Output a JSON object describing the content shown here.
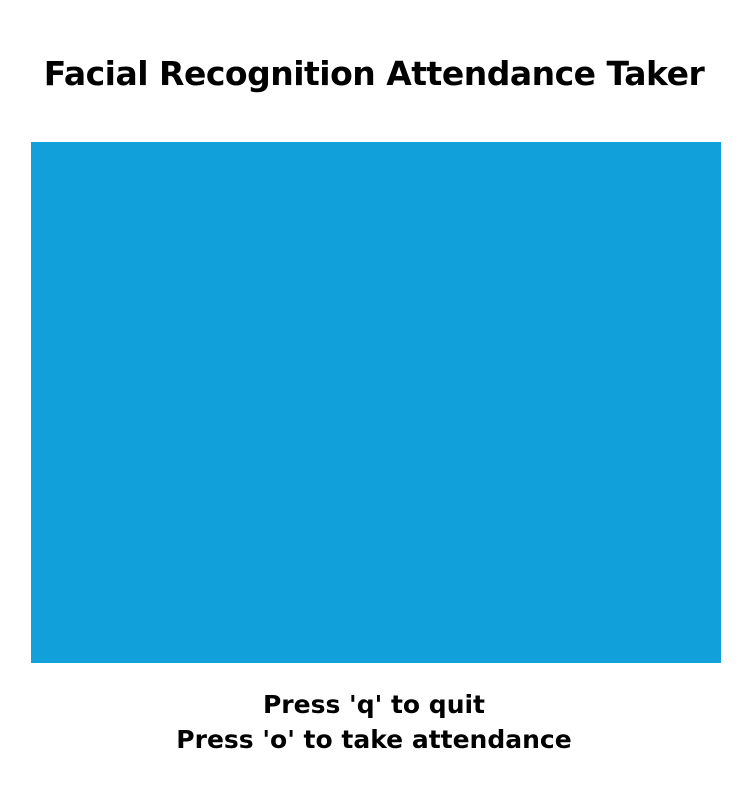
{
  "app": {
    "title": "Facial Recognition Attendance Taker"
  },
  "video_feed": {
    "color": "#12A0DA"
  },
  "instructions": [
    "Press 'q' to quit",
    "Press 'o' to take attendance"
  ]
}
